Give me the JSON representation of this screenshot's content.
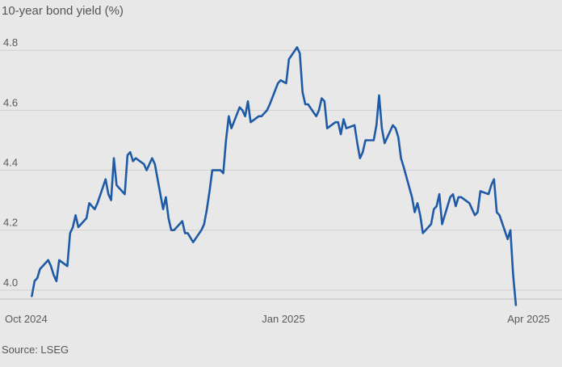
{
  "chart_data": {
    "type": "line",
    "title": "10-year bond yield (%)",
    "source": "Source: LSEG",
    "xlabel": "",
    "ylabel": "",
    "ylim": [
      3.97,
      4.86
    ],
    "yticks": [
      {
        "value": 4.0,
        "label": "4.0"
      },
      {
        "value": 4.2,
        "label": "4.2"
      },
      {
        "value": 4.4,
        "label": "4.4"
      },
      {
        "value": 4.6,
        "label": "4.6"
      },
      {
        "value": 4.8,
        "label": "4.8"
      }
    ],
    "xlim": [
      "2024-09-30",
      "2025-04-04"
    ],
    "xticks": [
      {
        "date": "2024-10-01",
        "label": "Oct 2024"
      },
      {
        "date": "2025-01-01",
        "label": "Jan 2025"
      },
      {
        "date": "2025-04-01",
        "label": "Apr 2025"
      }
    ],
    "grid": true,
    "line_color": "#1f5aa6",
    "series": [
      {
        "values": [
          [
            "2024-10-01",
            3.98
          ],
          [
            "2024-10-02",
            4.03
          ],
          [
            "2024-10-03",
            4.04
          ],
          [
            "2024-10-04",
            4.07
          ],
          [
            "2024-10-07",
            4.1
          ],
          [
            "2024-10-08",
            4.08
          ],
          [
            "2024-10-09",
            4.05
          ],
          [
            "2024-10-10",
            4.03
          ],
          [
            "2024-10-11",
            4.1
          ],
          [
            "2024-10-14",
            4.08
          ],
          [
            "2024-10-15",
            4.19
          ],
          [
            "2024-10-16",
            4.21
          ],
          [
            "2024-10-17",
            4.25
          ],
          [
            "2024-10-18",
            4.21
          ],
          [
            "2024-10-21",
            4.24
          ],
          [
            "2024-10-22",
            4.29
          ],
          [
            "2024-10-23",
            4.28
          ],
          [
            "2024-10-24",
            4.27
          ],
          [
            "2024-10-25",
            4.29
          ],
          [
            "2024-10-28",
            4.37
          ],
          [
            "2024-10-29",
            4.32
          ],
          [
            "2024-10-30",
            4.3
          ],
          [
            "2024-10-31",
            4.44
          ],
          [
            "2024-11-01",
            4.35
          ],
          [
            "2024-11-04",
            4.32
          ],
          [
            "2024-11-05",
            4.45
          ],
          [
            "2024-11-06",
            4.46
          ],
          [
            "2024-11-07",
            4.43
          ],
          [
            "2024-11-08",
            4.44
          ],
          [
            "2024-11-11",
            4.42
          ],
          [
            "2024-11-12",
            4.4
          ],
          [
            "2024-11-13",
            4.42
          ],
          [
            "2024-11-14",
            4.44
          ],
          [
            "2024-11-15",
            4.42
          ],
          [
            "2024-11-18",
            4.27
          ],
          [
            "2024-11-19",
            4.31
          ],
          [
            "2024-11-20",
            4.24
          ],
          [
            "2024-11-21",
            4.2
          ],
          [
            "2024-11-22",
            4.2
          ],
          [
            "2024-11-25",
            4.23
          ],
          [
            "2024-11-26",
            4.19
          ],
          [
            "2024-11-27",
            4.19
          ],
          [
            "2024-11-29",
            4.16
          ],
          [
            "2024-12-02",
            4.2
          ],
          [
            "2024-12-03",
            4.22
          ],
          [
            "2024-12-04",
            4.27
          ],
          [
            "2024-12-05",
            4.33
          ],
          [
            "2024-12-06",
            4.4
          ],
          [
            "2024-12-09",
            4.4
          ],
          [
            "2024-12-10",
            4.39
          ],
          [
            "2024-12-11",
            4.5
          ],
          [
            "2024-12-12",
            4.58
          ],
          [
            "2024-12-13",
            4.54
          ],
          [
            "2024-12-16",
            4.61
          ],
          [
            "2024-12-17",
            4.6
          ],
          [
            "2024-12-18",
            4.58
          ],
          [
            "2024-12-19",
            4.63
          ],
          [
            "2024-12-20",
            4.56
          ],
          [
            "2024-12-23",
            4.58
          ],
          [
            "2024-12-24",
            4.58
          ],
          [
            "2024-12-26",
            4.6
          ],
          [
            "2024-12-27",
            4.62
          ],
          [
            "2024-12-30",
            4.69
          ],
          [
            "2024-12-31",
            4.7
          ],
          [
            "2025-01-02",
            4.69
          ],
          [
            "2025-01-03",
            4.77
          ],
          [
            "2025-01-06",
            4.81
          ],
          [
            "2025-01-07",
            4.79
          ],
          [
            "2025-01-08",
            4.66
          ],
          [
            "2025-01-09",
            4.62
          ],
          [
            "2025-01-10",
            4.62
          ],
          [
            "2025-01-13",
            4.58
          ],
          [
            "2025-01-14",
            4.6
          ],
          [
            "2025-01-15",
            4.64
          ],
          [
            "2025-01-16",
            4.63
          ],
          [
            "2025-01-17",
            4.54
          ],
          [
            "2025-01-20",
            4.56
          ],
          [
            "2025-01-21",
            4.56
          ],
          [
            "2025-01-22",
            4.52
          ],
          [
            "2025-01-23",
            4.57
          ],
          [
            "2025-01-24",
            4.54
          ],
          [
            "2025-01-27",
            4.55
          ],
          [
            "2025-01-28",
            4.49
          ],
          [
            "2025-01-29",
            4.44
          ],
          [
            "2025-01-30",
            4.46
          ],
          [
            "2025-01-31",
            4.5
          ],
          [
            "2025-02-03",
            4.5
          ],
          [
            "2025-02-04",
            4.55
          ],
          [
            "2025-02-05",
            4.65
          ],
          [
            "2025-02-06",
            4.54
          ],
          [
            "2025-02-07",
            4.49
          ],
          [
            "2025-02-10",
            4.55
          ],
          [
            "2025-02-11",
            4.54
          ],
          [
            "2025-02-12",
            4.51
          ],
          [
            "2025-02-13",
            4.44
          ],
          [
            "2025-02-14",
            4.41
          ],
          [
            "2025-02-17",
            4.31
          ],
          [
            "2025-02-18",
            4.26
          ],
          [
            "2025-02-19",
            4.29
          ],
          [
            "2025-02-20",
            4.25
          ],
          [
            "2025-02-21",
            4.19
          ],
          [
            "2025-02-24",
            4.22
          ],
          [
            "2025-02-25",
            4.27
          ],
          [
            "2025-02-26",
            4.28
          ],
          [
            "2025-02-27",
            4.32
          ],
          [
            "2025-02-28",
            4.22
          ],
          [
            "2025-03-03",
            4.31
          ],
          [
            "2025-03-04",
            4.32
          ],
          [
            "2025-03-05",
            4.28
          ],
          [
            "2025-03-06",
            4.31
          ],
          [
            "2025-03-07",
            4.31
          ],
          [
            "2025-03-10",
            4.29
          ],
          [
            "2025-03-11",
            4.27
          ],
          [
            "2025-03-12",
            4.25
          ],
          [
            "2025-03-13",
            4.26
          ],
          [
            "2025-03-14",
            4.33
          ],
          [
            "2025-03-17",
            4.32
          ],
          [
            "2025-03-18",
            4.35
          ],
          [
            "2025-03-19",
            4.37
          ],
          [
            "2025-03-20",
            4.26
          ],
          [
            "2025-03-21",
            4.25
          ],
          [
            "2025-03-24",
            4.17
          ],
          [
            "2025-03-25",
            4.2
          ],
          [
            "2025-03-26",
            4.05
          ],
          [
            "2025-03-27",
            3.95
          ]
        ]
      }
    ]
  }
}
